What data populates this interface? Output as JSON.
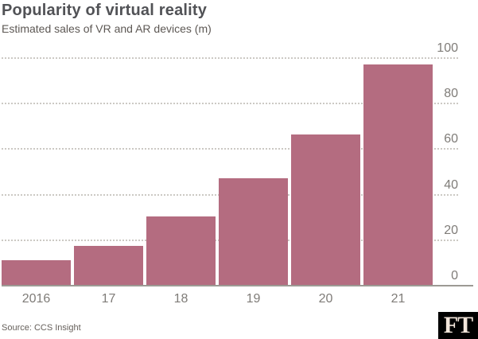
{
  "header": {
    "title": "Popularity of virtual reality",
    "subtitle": "Estimated sales of VR and AR devices (m)"
  },
  "chart_data": {
    "type": "bar",
    "title": "Popularity of virtual reality",
    "subtitle": "Estimated sales of VR and AR devices (m)",
    "categories": [
      "2016",
      "17",
      "18",
      "19",
      "20",
      "21"
    ],
    "values": [
      11,
      17,
      30,
      47,
      66,
      97
    ],
    "ylim": [
      0,
      100
    ],
    "yticks": [
      0,
      20,
      40,
      60,
      80,
      100
    ],
    "y_axis_side": "right",
    "grid": "horizontal-dotted",
    "legend": false,
    "bar_color": "#b46c80",
    "source": "Source: CCS Insight"
  },
  "footer": {
    "source": "Source: CCS Insight",
    "logo_text": "FT"
  },
  "colors": {
    "background": "#ffffff",
    "bar": "#b46c80",
    "title_text": "#515256",
    "subtitle_text": "#5d5854",
    "tick_label": "#7f7c78",
    "gridline": "#ccc9c4",
    "axis_line": "#9c9a94",
    "logo_background": "#000000",
    "logo_text_color": "#f2e5da"
  }
}
